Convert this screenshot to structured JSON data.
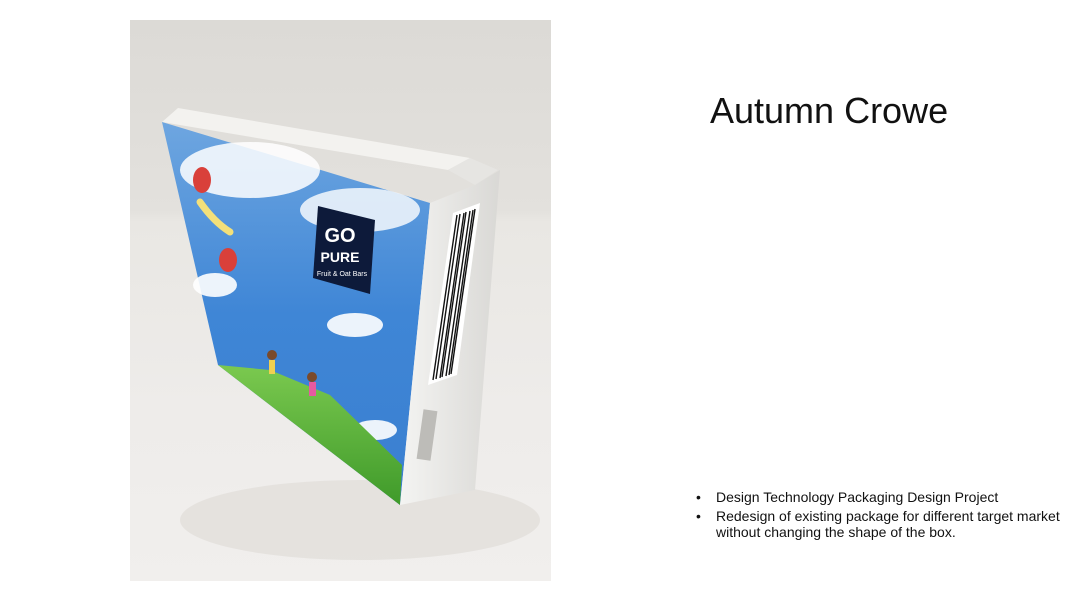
{
  "slide": {
    "title": "Autumn Crowe",
    "bullets": [
      "Design Technology Packaging Design Project",
      "Redesign of existing package for different target market without changing the shape of the box."
    ]
  },
  "photo": {
    "logo_line1": "GO",
    "logo_line2": "PURE",
    "logo_tagline": "Fruit & Oat Bars"
  }
}
